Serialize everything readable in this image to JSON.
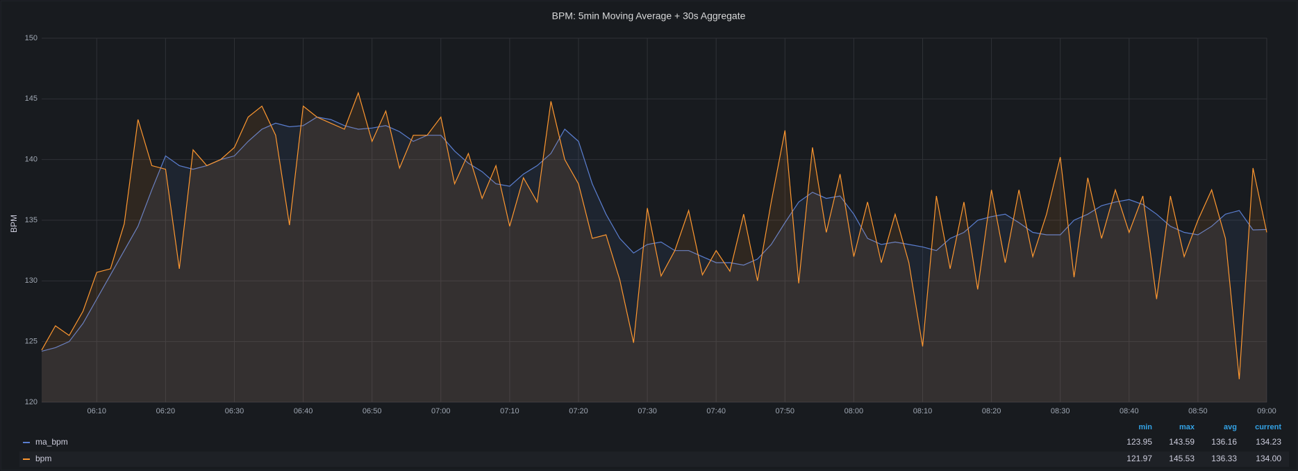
{
  "chart_data": {
    "type": "line",
    "title": "BPM: 5min Moving Average + 30s Aggregate",
    "y_label": "BPM",
    "x": [
      "06:02",
      "06:04",
      "06:06",
      "06:08",
      "06:10",
      "06:12",
      "06:14",
      "06:16",
      "06:18",
      "06:20",
      "06:22",
      "06:24",
      "06:26",
      "06:28",
      "06:30",
      "06:32",
      "06:34",
      "06:36",
      "06:38",
      "06:40",
      "06:42",
      "06:44",
      "06:46",
      "06:48",
      "06:50",
      "06:52",
      "06:54",
      "06:56",
      "06:58",
      "07:00",
      "07:02",
      "07:04",
      "07:06",
      "07:08",
      "07:10",
      "07:12",
      "07:14",
      "07:16",
      "07:18",
      "07:20",
      "07:22",
      "07:24",
      "07:26",
      "07:28",
      "07:30",
      "07:32",
      "07:34",
      "07:36",
      "07:38",
      "07:40",
      "07:42",
      "07:44",
      "07:46",
      "07:48",
      "07:50",
      "07:52",
      "07:54",
      "07:56",
      "07:58",
      "08:00",
      "08:02",
      "08:04",
      "08:06",
      "08:08",
      "08:10",
      "08:12",
      "08:14",
      "08:16",
      "08:18",
      "08:20",
      "08:22",
      "08:24",
      "08:26",
      "08:28",
      "08:30",
      "08:32",
      "08:34",
      "08:36",
      "08:38",
      "08:40",
      "08:42",
      "08:44",
      "08:46",
      "08:48",
      "08:50",
      "08:52",
      "08:54",
      "08:56",
      "08:58",
      "09:00"
    ],
    "series": [
      {
        "name": "ma_bpm",
        "color": "#5b7fd1",
        "values": [
          124.2,
          124.5,
          125,
          126.5,
          128.5,
          130.5,
          132.5,
          134.5,
          137.5,
          140.3,
          139.5,
          139.2,
          139.5,
          140,
          140.3,
          141.5,
          142.5,
          143,
          142.7,
          142.8,
          143.5,
          143.3,
          142.8,
          142.5,
          142.6,
          142.8,
          142.3,
          141.5,
          142,
          142,
          140.7,
          139.7,
          139,
          138,
          137.8,
          138.8,
          139.5,
          140.5,
          142.5,
          141.5,
          138,
          135.5,
          133.5,
          132.3,
          133,
          133.2,
          132.5,
          132.5,
          132,
          131.5,
          131.5,
          131.3,
          131.8,
          133,
          134.8,
          136.5,
          137.3,
          136.8,
          137,
          135.5,
          133.5,
          133,
          133.2,
          133,
          132.8,
          132.5,
          133.5,
          134,
          135,
          135.3,
          135.5,
          134.8,
          134,
          133.8,
          133.8,
          135,
          135.5,
          136.2,
          136.5,
          136.7,
          136.3,
          135.5,
          134.5,
          134,
          133.8,
          134.5,
          135.5,
          135.8,
          134.2,
          134.23
        ]
      },
      {
        "name": "bpm",
        "color": "#ff9830",
        "values": [
          124.3,
          126.3,
          125.5,
          127.5,
          130.7,
          131,
          134.7,
          143.3,
          139.5,
          139.2,
          131,
          140.8,
          139.5,
          140,
          141,
          143.5,
          144.4,
          142,
          134.6,
          144.4,
          143.5,
          143,
          142.5,
          145.5,
          141.5,
          144,
          139.3,
          142,
          142,
          143.5,
          138,
          140.5,
          136.8,
          139.5,
          134.5,
          138.5,
          136.5,
          144.8,
          140,
          138,
          133.5,
          133.8,
          130.1,
          124.9,
          136,
          130.4,
          132.5,
          135.8,
          130.5,
          132.5,
          130.8,
          135.5,
          130,
          136.5,
          142.4,
          129.8,
          141,
          134,
          138.8,
          132,
          136.5,
          131.5,
          135.5,
          131.5,
          124.6,
          137,
          131,
          136.5,
          129.3,
          137.5,
          131.5,
          137.5,
          132,
          135.5,
          140.2,
          130.3,
          138.5,
          133.5,
          137.5,
          134,
          137,
          128.5,
          137,
          132,
          135,
          137.5,
          133.5,
          121.9,
          139.3,
          134
        ]
      }
    ],
    "xlim": [
      "06:02",
      "09:00"
    ],
    "xticks": [
      "06:10",
      "06:20",
      "06:30",
      "06:40",
      "06:50",
      "07:00",
      "07:10",
      "07:20",
      "07:30",
      "07:40",
      "07:50",
      "08:00",
      "08:10",
      "08:20",
      "08:30",
      "08:40",
      "08:50",
      "09:00"
    ],
    "ylim": [
      120,
      150
    ],
    "yticks": [
      120,
      125,
      130,
      135,
      140,
      145,
      150
    ],
    "grid": true,
    "legend": {
      "columns": [
        "min",
        "max",
        "avg",
        "current"
      ],
      "rows": [
        [
          "123.95",
          "143.59",
          "136.16",
          "134.23"
        ],
        [
          "121.97",
          "145.53",
          "136.33",
          "134.00"
        ]
      ]
    }
  }
}
